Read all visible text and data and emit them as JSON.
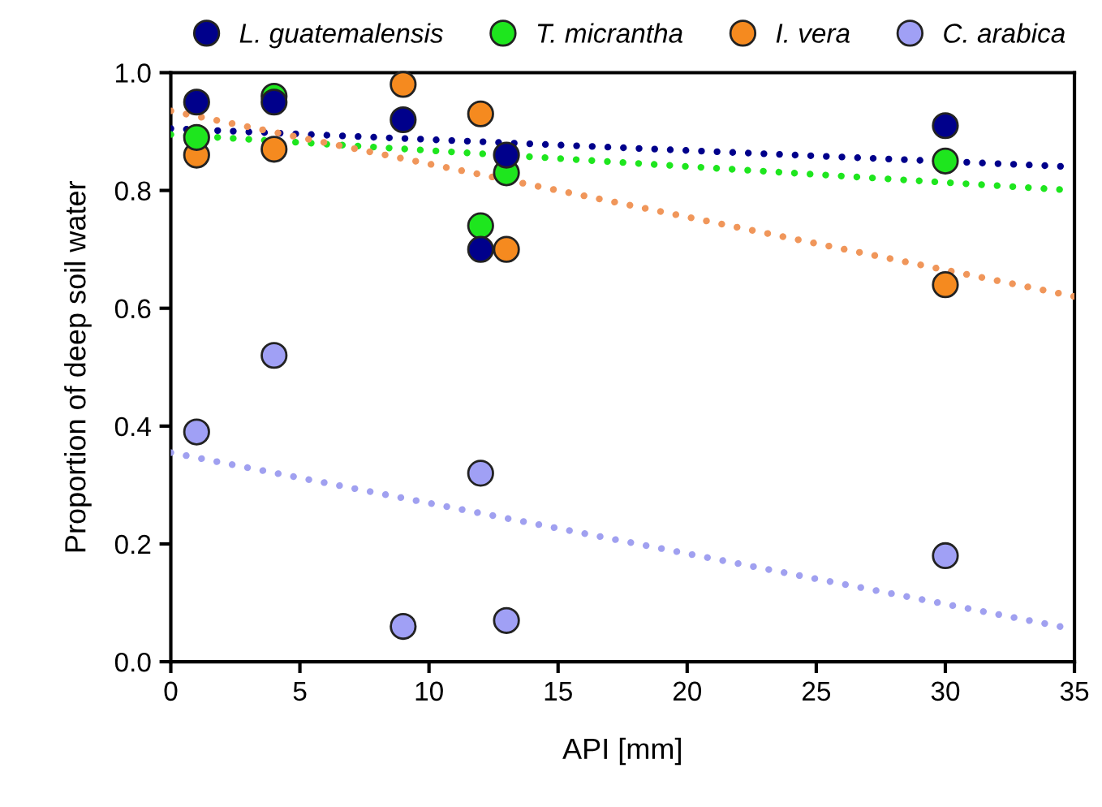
{
  "chart_data": {
    "type": "scatter",
    "xlabel": "API [mm]",
    "ylabel": "Proportion of deep soil water",
    "xlim": [
      0,
      35
    ],
    "ylim": [
      0,
      1.0
    ],
    "xticks": [
      0,
      5,
      10,
      15,
      20,
      25,
      30,
      35
    ],
    "yticks": [
      {
        "value": 0,
        "label": "0.0"
      },
      {
        "value": 0.2,
        "label": "0.2"
      },
      {
        "value": 0.4,
        "label": "0.4"
      },
      {
        "value": 0.6,
        "label": "0.6"
      },
      {
        "value": 0.8,
        "label": "0.8"
      },
      {
        "value": 1.0,
        "label": "1.0"
      }
    ],
    "grid": false,
    "legend": "top",
    "marker": "circle",
    "series": [
      {
        "name": "L. guatemalensis",
        "color": "#00008b",
        "x": [
          1,
          4,
          9,
          12,
          13,
          30
        ],
        "values": [
          0.95,
          0.95,
          0.92,
          0.7,
          0.86,
          0.91
        ]
      },
      {
        "name": "T. micrantha",
        "color": "#1ee61e",
        "x": [
          1,
          4,
          12,
          13,
          30
        ],
        "values": [
          0.89,
          0.96,
          0.74,
          0.83,
          0.85
        ]
      },
      {
        "name": "I. vera",
        "color": "#f58a1f",
        "x": [
          1,
          4,
          9,
          12,
          13,
          30
        ],
        "values": [
          0.86,
          0.87,
          0.98,
          0.93,
          0.7,
          0.64
        ]
      },
      {
        "name": "C. arabica",
        "color": "#a0a0f5",
        "x": [
          1,
          4,
          9,
          12,
          13,
          30
        ],
        "values": [
          0.39,
          0.52,
          0.06,
          0.32,
          0.07,
          0.18
        ]
      },
      {
        "type": "line",
        "marker": "none",
        "line_style": "dotted",
        "color": "#00008b",
        "x": [
          0,
          35
        ],
        "values": [
          0.905,
          0.84
        ]
      },
      {
        "type": "line",
        "marker": "none",
        "line_style": "dotted",
        "color": "#1ee61e",
        "x": [
          0,
          35
        ],
        "values": [
          0.895,
          0.8
        ]
      },
      {
        "type": "line",
        "marker": "none",
        "line_style": "dotted",
        "color": "#f0965a",
        "x": [
          0,
          35
        ],
        "values": [
          0.935,
          0.62
        ]
      },
      {
        "type": "line",
        "marker": "none",
        "line_style": "dotted",
        "color": "#a0a0f0",
        "x": [
          0,
          35
        ],
        "values": [
          0.355,
          0.055
        ]
      }
    ]
  }
}
